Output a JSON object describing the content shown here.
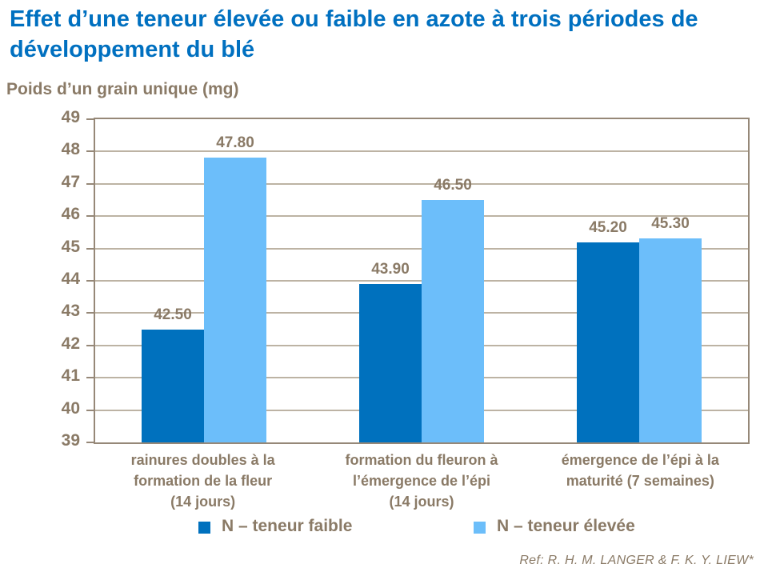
{
  "title": "Effet d’une teneur élevée ou faible en azote à trois périodes de développement du blé",
  "y_axis_title": "Poids d’un grain unique (mg)",
  "footnote": "Ref: R. H. M. LANGER & F. K. Y. LIEW*",
  "colors": {
    "title_blue": "#0070C0",
    "text_brown": "#8A7A66",
    "series_low": "#0071BE",
    "series_high": "#6CBEFA",
    "gridline": "#BDB3A4",
    "plot_border": "#968878"
  },
  "legend": {
    "items": [
      {
        "label": "N – teneur faible",
        "color_key": "series_low"
      },
      {
        "label": "N – teneur élevée",
        "color_key": "series_high"
      }
    ]
  },
  "chart_data": {
    "type": "bar",
    "title": "Effet d’une teneur élevée ou faible en azote à trois périodes de développement du blé",
    "ylabel": "Poids d’un grain unique (mg)",
    "categories": [
      "rainures doubles à la formation de la fleur (14 jours)",
      "formation du fleuron à l’émergence de l’épi (14 jours)",
      "émergence de l’épi à la maturité (7 semaines)"
    ],
    "category_lines": [
      [
        "rainures doubles à la",
        "formation de la fleur",
        "(14 jours)"
      ],
      [
        "formation du fleuron à",
        "l’émergence de l’épi",
        "(14 jours)"
      ],
      [
        "émergence de l’épi à la",
        "maturité (7 semaines)"
      ]
    ],
    "series": [
      {
        "name": "N – teneur faible",
        "values": [
          42.5,
          43.9,
          45.2
        ],
        "labels": [
          "42.50",
          "43.90",
          "45.20"
        ]
      },
      {
        "name": "N – teneur élevée",
        "values": [
          47.8,
          46.5,
          45.3
        ],
        "labels": [
          "47.80",
          "46.50",
          "45.30"
        ]
      }
    ],
    "ylim": [
      39,
      49
    ],
    "yticks": [
      39,
      40,
      41,
      42,
      43,
      44,
      45,
      46,
      47,
      48,
      49
    ],
    "grid": true,
    "legend_position": "bottom"
  }
}
